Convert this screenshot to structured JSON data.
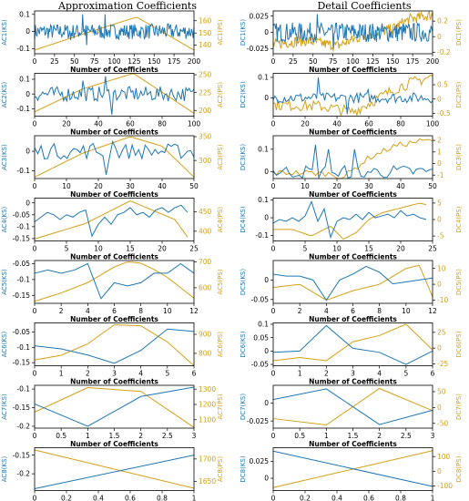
{
  "titles": {
    "left": "Approximation Coefficients",
    "right": "Detail Coefficients"
  },
  "colors": {
    "ks": "#1f77b4",
    "ps": "#d4a017"
  },
  "chart_data": [
    {
      "id": "A1",
      "type": "line",
      "xlabel": "Number of Coefficients",
      "ylabel_left": "AC1(KS)",
      "ylabel_right": "AC1(PS)",
      "xlim": [
        0,
        200
      ],
      "xticks": [
        0,
        25,
        50,
        75,
        100,
        125,
        150,
        175,
        200
      ],
      "yl": [
        -0.13,
        0.12
      ],
      "ylt": [
        -0.1,
        0.0,
        0.1
      ],
      "yr": [
        133,
        168
      ],
      "yrt": [
        140,
        150,
        160
      ],
      "ks_shape": "noise",
      "ks_amp": 0.045,
      "ks_spikes": [
        [
          60,
          0.1
        ],
        [
          88,
          0.1
        ],
        [
          65,
          -0.08
        ],
        [
          45,
          -0.05
        ]
      ],
      "ps_x": [
        0,
        65,
        128,
        200
      ],
      "ps_y": [
        136,
        150,
        163,
        136
      ],
      "n": 200
    },
    {
      "id": "D1",
      "type": "line",
      "xlabel": "Number of Coefficients",
      "ylabel_left": "DC1(KS)",
      "ylabel_right": "DC1(PS)",
      "xlim": [
        0,
        200
      ],
      "xticks": [
        0,
        25,
        50,
        75,
        100,
        125,
        150,
        175,
        200
      ],
      "yl": [
        -0.033,
        0.033
      ],
      "ylt": [
        -0.025,
        0.0,
        0.025
      ],
      "yr": [
        -0.22,
        0.33
      ],
      "yrt": [
        -0.2,
        0.0,
        0.2
      ],
      "ks_shape": "noise",
      "ks_amp": 0.015,
      "ks_spikes": [
        [
          55,
          0.028
        ],
        [
          75,
          -0.025
        ]
      ],
      "ps_x": [
        0,
        40,
        80,
        110,
        150,
        170,
        200
      ],
      "ps_y": [
        -0.1,
        -0.05,
        -0.12,
        0.0,
        0.1,
        0.22,
        0.28
      ],
      "ps_noise": 0.07,
      "n": 200
    },
    {
      "id": "A2",
      "type": "line",
      "xlabel": "Number of Coefficients",
      "ylabel_left": "AC2(KS)",
      "ylabel_right": "AC2(PS)",
      "xlim": [
        0,
        100
      ],
      "xticks": [
        0,
        20,
        40,
        60,
        80,
        100
      ],
      "yl": [
        -0.15,
        0.14
      ],
      "ylt": [
        -0.1,
        0.0,
        0.1
      ],
      "yr": [
        192,
        252
      ],
      "yrt": [
        200,
        225,
        250
      ],
      "ks_shape": "noise",
      "ks_amp": 0.05,
      "ks_spikes": [
        [
          44,
          0.12
        ],
        [
          48,
          -0.14
        ],
        [
          30,
          0.09
        ]
      ],
      "ps_x": [
        0,
        30,
        62,
        100
      ],
      "ps_y": [
        198,
        230,
        252,
        196
      ],
      "n": 100
    },
    {
      "id": "D2",
      "type": "line",
      "xlabel": "Number of Coefficients",
      "ylabel_left": "DC2(KS)",
      "ylabel_right": "DC2(PS)",
      "xlim": [
        0,
        100
      ],
      "xticks": [
        0,
        20,
        40,
        60,
        80,
        100
      ],
      "yl": [
        -0.09,
        0.12
      ],
      "ylt": [
        0.0,
        0.1
      ],
      "yr": [
        -0.6,
        0.9
      ],
      "yrt": [
        -0.5,
        0.0,
        0.5
      ],
      "ks_shape": "noise",
      "ks_amp": 0.025,
      "ks_spikes": [
        [
          28,
          0.1
        ],
        [
          46,
          -0.08
        ],
        [
          60,
          0.04
        ]
      ],
      "ps_x": [
        0,
        30,
        50,
        65,
        80,
        100
      ],
      "ps_y": [
        -0.2,
        -0.25,
        -0.45,
        0.0,
        0.45,
        0.8
      ],
      "ps_noise": 0.2,
      "n": 100
    },
    {
      "id": "A3",
      "type": "line",
      "xlabel": "Number of Coefficients",
      "ylabel_left": "AC3(KS)",
      "ylabel_right": "AC3(PS)",
      "xlim": [
        0,
        50
      ],
      "xticks": [
        0,
        10,
        20,
        30,
        40,
        50
      ],
      "yl": [
        -0.14,
        0.08
      ],
      "ylt": [
        -0.1,
        0.0
      ],
      "yr": [
        262,
        352
      ],
      "yrt": [
        300,
        350
      ],
      "ks_shape": "noise",
      "ks_amp": 0.04,
      "ks_spikes": [
        [
          22,
          -0.12
        ],
        [
          18,
          0.04
        ],
        [
          24,
          0.05
        ]
      ],
      "ps_x": [
        0,
        15,
        30,
        40,
        50
      ],
      "ps_y": [
        265,
        315,
        350,
        330,
        265
      ],
      "n": 50
    },
    {
      "id": "D3",
      "type": "line",
      "xlabel": "Number of Coefficients",
      "ylabel_left": "DC3(KS)",
      "ylabel_right": "DC3(PS)",
      "xlim": [
        0,
        50
      ],
      "xticks": [
        0,
        10,
        20,
        30,
        40,
        50
      ],
      "yl": [
        -0.03,
        0.16
      ],
      "ylt": [
        0.0,
        0.1
      ],
      "yr": [
        -1.3,
        2.4
      ],
      "yrt": [
        -1,
        0,
        1,
        2
      ],
      "ks_shape": "noise",
      "ks_amp": 0.03,
      "ks_spikes": [
        [
          13,
          0.12
        ],
        [
          17,
          0.1
        ],
        [
          20,
          -0.02
        ],
        [
          26,
          0.1
        ],
        [
          28,
          -0.02
        ]
      ],
      "ps_x": [
        0,
        10,
        18,
        22,
        30,
        38,
        45,
        50
      ],
      "ps_y": [
        -0.8,
        -0.8,
        -0.9,
        -1.2,
        0.5,
        1.5,
        1.9,
        2.0
      ],
      "ps_noise": 0.25,
      "n": 50
    },
    {
      "id": "A4",
      "type": "line",
      "xlabel": "Number of Coefficients",
      "ylabel_left": "AC4(KS)",
      "ylabel_right": "AC4(PS)",
      "xlim": [
        0,
        25
      ],
      "xticks": [
        0,
        5,
        10,
        15,
        20,
        25
      ],
      "yl": [
        -0.16,
        0.02
      ],
      "ylt": [
        -0.15,
        -0.1,
        -0.05,
        0.0
      ],
      "yr": [
        375,
        485
      ],
      "yrt": [
        400,
        450
      ],
      "ks_x": [
        0,
        1,
        2,
        3,
        4,
        5,
        6,
        7,
        8,
        9,
        10,
        11,
        12,
        13,
        14,
        15,
        16,
        17,
        18,
        19,
        20,
        21,
        22,
        23,
        24
      ],
      "ks_y": [
        -0.08,
        -0.06,
        -0.04,
        -0.05,
        -0.07,
        -0.05,
        -0.06,
        -0.04,
        -0.03,
        -0.14,
        -0.09,
        -0.06,
        -0.09,
        -0.05,
        -0.04,
        -0.02,
        -0.05,
        -0.04,
        -0.06,
        -0.03,
        -0.02,
        -0.04,
        -0.02,
        -0.01,
        -0.04
      ],
      "ps_x": [
        0,
        8,
        15,
        22,
        24
      ],
      "ps_y": [
        380,
        420,
        478,
        430,
        385
      ],
      "n": 25
    },
    {
      "id": "D4",
      "type": "line",
      "xlabel": "Number of Coefficients",
      "ylabel_left": "DC4(KS)",
      "ylabel_right": "DC4(PS)",
      "xlim": [
        0,
        25
      ],
      "xticks": [
        0,
        5,
        10,
        15,
        20,
        25
      ],
      "yl": [
        -0.13,
        0.11
      ],
      "ylt": [
        -0.1,
        0.0,
        0.1
      ],
      "yr": [
        -6.5,
        6.5
      ],
      "yrt": [
        -5,
        0,
        5
      ],
      "ks_x": [
        0,
        1,
        2,
        3,
        4,
        5,
        6,
        7,
        8,
        9,
        10,
        11,
        12,
        13,
        14,
        15,
        16,
        17,
        18,
        19,
        20,
        21,
        22,
        23,
        24
      ],
      "ks_y": [
        -0.03,
        -0.01,
        -0.02,
        0.0,
        -0.02,
        0.01,
        0.09,
        -0.02,
        0.05,
        -0.11,
        -0.02,
        0.0,
        -0.01,
        0.02,
        -0.01,
        0.03,
        0.0,
        0.01,
        0.02,
        0.0,
        0.04,
        0.01,
        0.02,
        0.0,
        -0.01
      ],
      "ps_x": [
        0,
        3,
        6,
        9,
        11,
        13,
        15,
        17,
        19,
        21,
        23,
        24
      ],
      "ps_y": [
        -3,
        -3,
        -5,
        -2,
        -6,
        -4,
        0,
        2,
        3,
        4,
        5,
        4.5
      ],
      "n": 25
    },
    {
      "id": "A5",
      "type": "line",
      "xlabel": "Number of Coefficients",
      "ylabel_left": "AC5(KS)",
      "ylabel_right": "AC5(PS)",
      "xlim": [
        0,
        12
      ],
      "xticks": [
        0,
        2,
        4,
        6,
        8,
        10,
        12
      ],
      "yl": [
        -0.175,
        -0.04
      ],
      "ylt": [
        -0.15,
        -0.1,
        -0.05
      ],
      "yr": [
        540,
        705
      ],
      "yrt": [
        600,
        700
      ],
      "ks_x": [
        0,
        1,
        2,
        3,
        4,
        5,
        6,
        7,
        8,
        9,
        10,
        11,
        12
      ],
      "ks_y": [
        -0.08,
        -0.07,
        -0.08,
        -0.07,
        -0.05,
        -0.16,
        -0.11,
        -0.12,
        -0.11,
        -0.08,
        -0.08,
        -0.05,
        -0.08
      ],
      "ps_x": [
        0,
        2,
        4,
        6,
        7,
        8,
        9,
        10,
        12
      ],
      "ps_y": [
        548,
        580,
        620,
        680,
        700,
        695,
        670,
        640,
        560
      ],
      "n": 13
    },
    {
      "id": "D5",
      "type": "line",
      "xlabel": "Number of Coefficients",
      "ylabel_left": "DC5(KS)",
      "ylabel_right": "DC5(PS)",
      "xlim": [
        0,
        12
      ],
      "xticks": [
        0,
        2,
        4,
        6,
        8,
        10,
        12
      ],
      "yl": [
        -0.06,
        0.05
      ],
      "ylt": [
        -0.05,
        0.0
      ],
      "yr": [
        -12,
        15
      ],
      "yrt": [
        -10,
        0,
        10
      ],
      "ks_x": [
        0,
        1,
        2,
        3,
        4,
        5,
        6,
        7,
        8,
        9,
        10,
        11,
        12
      ],
      "ks_y": [
        0.015,
        0.01,
        0.01,
        0.0,
        -0.052,
        0.0,
        0.015,
        0.035,
        0.02,
        -0.01,
        -0.005,
        0.0,
        0.005
      ],
      "ps_x": [
        0,
        2,
        4,
        6,
        8,
        10,
        11,
        12
      ],
      "ps_y": [
        -2,
        0,
        -10,
        -4,
        0,
        10,
        12,
        -8
      ],
      "n": 13
    },
    {
      "id": "A6",
      "type": "line",
      "xlabel": "Number of Coefficients",
      "ylabel_left": "AC6(KS)",
      "ylabel_right": "AC6(PS)",
      "xlim": [
        0,
        6
      ],
      "xticks": [
        0,
        1,
        2,
        3,
        4,
        5,
        6
      ],
      "yl": [
        -0.16,
        -0.02
      ],
      "ylt": [
        -0.15,
        -0.1,
        -0.05
      ],
      "yr": [
        735,
        960
      ],
      "yrt": [
        800,
        900
      ],
      "ks_x": [
        0,
        1,
        2,
        3,
        4,
        5,
        6
      ],
      "ks_y": [
        -0.095,
        -0.105,
        -0.125,
        -0.152,
        -0.11,
        -0.04,
        -0.048
      ],
      "ps_x": [
        0,
        1,
        2,
        3,
        4,
        5,
        6
      ],
      "ps_y": [
        765,
        790,
        850,
        950,
        945,
        860,
        735
      ],
      "n": 7
    },
    {
      "id": "D6",
      "type": "line",
      "xlabel": "Number of Coefficients",
      "ylabel_left": "DC6(KS)",
      "ylabel_right": "DC6(PS)",
      "xlim": [
        0,
        6
      ],
      "xticks": [
        0,
        1,
        2,
        3,
        4,
        5,
        6
      ],
      "yl": [
        -0.055,
        0.105
      ],
      "ylt": [
        -0.05,
        0.0,
        0.05,
        0.1
      ],
      "yr": [
        -28,
        40
      ],
      "yrt": [
        -25,
        0,
        25
      ],
      "ks_x": [
        0,
        1,
        2,
        3,
        4,
        5,
        6
      ],
      "ks_y": [
        -0.005,
        0.0,
        0.095,
        0.01,
        -0.005,
        -0.05,
        0.0
      ],
      "ps_x": [
        0,
        1,
        2,
        3,
        4,
        5,
        6
      ],
      "ps_y": [
        -20,
        -15,
        -20,
        10,
        20,
        38,
        -3
      ],
      "n": 7
    },
    {
      "id": "A7",
      "type": "line",
      "xlabel": "Number of Coefficients",
      "ylabel_left": "AC7(KS)",
      "ylabel_right": "AC7(PS)",
      "xlim": [
        0,
        3
      ],
      "xticks": [
        0.0,
        0.5,
        1.0,
        1.5,
        2.0,
        2.5,
        3.0
      ],
      "yl": [
        -0.205,
        -0.09
      ],
      "ylt": [
        -0.2,
        -0.15,
        -0.1
      ],
      "yr": [
        1045,
        1325
      ],
      "yrt": [
        1100,
        1200,
        1300
      ],
      "ks_x": [
        0,
        1,
        2,
        3
      ],
      "ks_y": [
        -0.14,
        -0.2,
        -0.12,
        -0.095
      ],
      "ps_x": [
        0,
        1,
        2,
        3
      ],
      "ps_y": [
        1150,
        1310,
        1285,
        1050
      ],
      "n": 4
    },
    {
      "id": "D7",
      "type": "line",
      "xlabel": "Number of Coefficients",
      "ylabel_left": "DC7(KS)",
      "ylabel_right": "DC7(PS)",
      "xlim": [
        0,
        3
      ],
      "xticks": [
        0.0,
        0.5,
        1.0,
        1.5,
        2.0,
        2.5,
        3.0
      ],
      "yl": [
        -0.035,
        0.025
      ],
      "ylt": [
        -0.025,
        0.0
      ],
      "yr": [
        -65,
        70
      ],
      "yrt": [
        -50,
        0,
        50
      ],
      "ks_x": [
        0,
        1,
        2,
        3
      ],
      "ks_y": [
        0.005,
        0.02,
        -0.03,
        -0.01
      ],
      "ps_x": [
        0,
        1,
        2,
        3
      ],
      "ps_y": [
        -35,
        -55,
        60,
        -10
      ],
      "n": 4
    },
    {
      "id": "A8",
      "type": "line",
      "xlabel": "Number of Coefficients",
      "ylabel_left": "AC8(KS)",
      "ylabel_right": "AC8(PS)",
      "xlim": [
        0,
        1
      ],
      "xticks": [
        0.0,
        0.2,
        0.4,
        0.6,
        0.8,
        1.0
      ],
      "yl": [
        -0.245,
        -0.13
      ],
      "ylt": [
        -0.2,
        -0.15
      ],
      "yr": [
        1630,
        1725
      ],
      "yrt": [
        1650,
        1700
      ],
      "ks_x": [
        0,
        1
      ],
      "ks_y": [
        -0.24,
        -0.15
      ],
      "ps_x": [
        0,
        1
      ],
      "ps_y": [
        1720,
        1635
      ],
      "n": 2
    },
    {
      "id": "D8",
      "type": "line",
      "xlabel": "Number of Coefficients",
      "ylabel_left": "DC8(KS)",
      "ylabel_right": "DC8(PS)",
      "xlim": [
        0,
        1
      ],
      "xticks": [
        0.0,
        0.2,
        0.4,
        0.6,
        0.8,
        1.0
      ],
      "yl": [
        -0.018,
        0.045
      ],
      "ylt": [
        0.0,
        0.025
      ],
      "yr": [
        -130,
        160
      ],
      "yrt": [
        -100,
        0,
        100
      ],
      "ks_x": [
        0,
        1
      ],
      "ks_y": [
        0.04,
        -0.012
      ],
      "ps_x": [
        0,
        1
      ],
      "ps_y": [
        -110,
        140
      ],
      "n": 2
    }
  ]
}
